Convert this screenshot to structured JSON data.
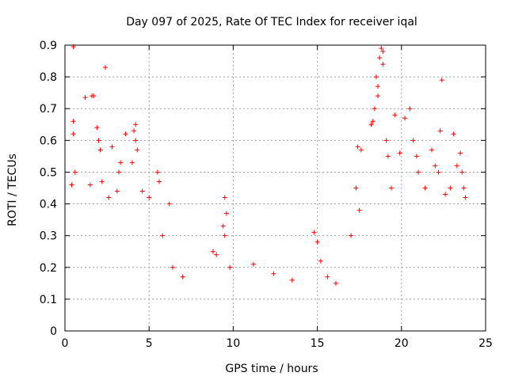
{
  "chart_data": {
    "type": "scatter",
    "title": "Day 097 of 2025, Rate Of TEC Index for receiver iqal",
    "xlabel": "GPS time / hours",
    "ylabel": "ROTI / TECUs",
    "xlim": [
      0,
      25
    ],
    "ylim": [
      0,
      0.9
    ],
    "x_ticks": [
      "0",
      "5",
      "10",
      "15",
      "20",
      "25"
    ],
    "y_ticks": [
      "0",
      "0.1",
      "0.2",
      "0.3",
      "0.4",
      "0.5",
      "0.6",
      "0.7",
      "0.8",
      "0.9"
    ],
    "grid": true,
    "marker": "+",
    "color": "#ff0000",
    "series": [
      {
        "values": [
          [
            0.5,
            0.895
          ],
          [
            0.5,
            0.66
          ],
          [
            0.5,
            0.62
          ],
          [
            0.6,
            0.5
          ],
          [
            0.4,
            0.46
          ],
          [
            1.2,
            0.735
          ],
          [
            1.6,
            0.74
          ],
          [
            1.7,
            0.74
          ],
          [
            2.4,
            0.83
          ],
          [
            1.9,
            0.64
          ],
          [
            2.0,
            0.6
          ],
          [
            2.1,
            0.57
          ],
          [
            2.8,
            0.58
          ],
          [
            1.5,
            0.46
          ],
          [
            2.2,
            0.47
          ],
          [
            3.3,
            0.53
          ],
          [
            3.2,
            0.5
          ],
          [
            3.1,
            0.44
          ],
          [
            2.6,
            0.42
          ],
          [
            4.2,
            0.65
          ],
          [
            4.1,
            0.63
          ],
          [
            4.2,
            0.6
          ],
          [
            4.3,
            0.57
          ],
          [
            3.6,
            0.62
          ],
          [
            4.0,
            0.53
          ],
          [
            4.6,
            0.44
          ],
          [
            5.0,
            0.42
          ],
          [
            5.5,
            0.5
          ],
          [
            5.6,
            0.47
          ],
          [
            6.2,
            0.4
          ],
          [
            5.8,
            0.3
          ],
          [
            6.4,
            0.2
          ],
          [
            7.0,
            0.17
          ],
          [
            9.5,
            0.42
          ],
          [
            9.6,
            0.37
          ],
          [
            9.4,
            0.33
          ],
          [
            9.5,
            0.3
          ],
          [
            9.8,
            0.2
          ],
          [
            8.8,
            0.25
          ],
          [
            9.0,
            0.24
          ],
          [
            11.2,
            0.21
          ],
          [
            12.4,
            0.18
          ],
          [
            13.5,
            0.16
          ],
          [
            14.8,
            0.31
          ],
          [
            15.0,
            0.28
          ],
          [
            15.2,
            0.22
          ],
          [
            15.6,
            0.17
          ],
          [
            16.1,
            0.15
          ],
          [
            17.0,
            0.3
          ],
          [
            17.3,
            0.45
          ],
          [
            17.4,
            0.58
          ],
          [
            17.6,
            0.57
          ],
          [
            17.5,
            0.38
          ],
          [
            18.2,
            0.65
          ],
          [
            18.3,
            0.66
          ],
          [
            18.4,
            0.7
          ],
          [
            18.6,
            0.74
          ],
          [
            18.5,
            0.8
          ],
          [
            18.7,
            0.86
          ],
          [
            18.8,
            0.89
          ],
          [
            18.9,
            0.88
          ],
          [
            18.9,
            0.84
          ],
          [
            18.6,
            0.77
          ],
          [
            19.1,
            0.6
          ],
          [
            19.2,
            0.55
          ],
          [
            19.4,
            0.45
          ],
          [
            19.6,
            0.68
          ],
          [
            19.9,
            0.56
          ],
          [
            20.2,
            0.67
          ],
          [
            20.5,
            0.7
          ],
          [
            20.7,
            0.6
          ],
          [
            20.9,
            0.55
          ],
          [
            21.0,
            0.5
          ],
          [
            21.4,
            0.45
          ],
          [
            21.8,
            0.57
          ],
          [
            22.0,
            0.52
          ],
          [
            22.2,
            0.5
          ],
          [
            22.3,
            0.63
          ],
          [
            22.4,
            0.79
          ],
          [
            22.6,
            0.43
          ],
          [
            22.9,
            0.45
          ],
          [
            23.1,
            0.62
          ],
          [
            23.3,
            0.52
          ],
          [
            23.5,
            0.56
          ],
          [
            23.6,
            0.5
          ],
          [
            23.7,
            0.45
          ],
          [
            23.8,
            0.42
          ]
        ]
      }
    ]
  }
}
